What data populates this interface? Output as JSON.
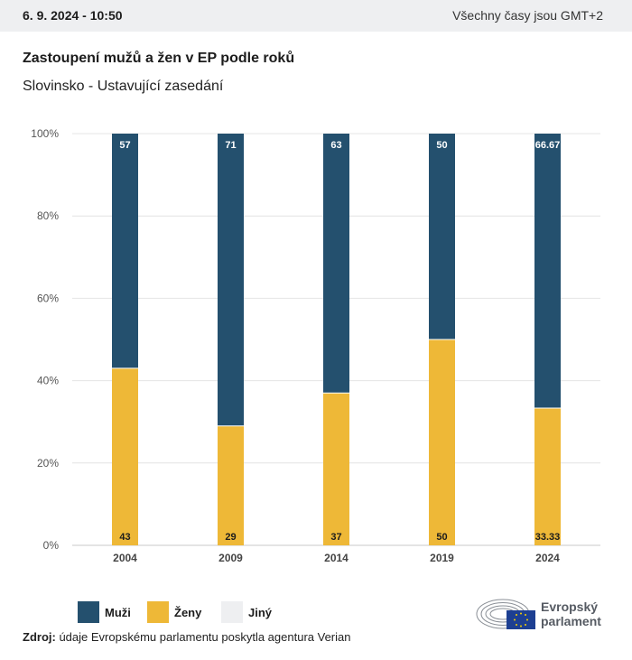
{
  "header": {
    "date": "6. 9. 2024 - 10:50",
    "timezone": "Všechny časy jsou GMT+2"
  },
  "title": "Zastoupení mužů a žen v EP podle roků",
  "subtitle": "Slovinsko - Ustavující zasedání",
  "colors": {
    "men": "#24506e",
    "women": "#eeb837",
    "other": "#eeeff1",
    "grid": "#e4e4e4"
  },
  "chart_data": {
    "type": "bar",
    "stacked": true,
    "categories": [
      "2004",
      "2009",
      "2014",
      "2019",
      "2024"
    ],
    "series": [
      {
        "name": "Ženy",
        "values": [
          43,
          29,
          37,
          50,
          33.33
        ],
        "labels": [
          "43",
          "29",
          "37",
          "50",
          "33.33"
        ]
      },
      {
        "name": "Muži",
        "values": [
          57,
          71,
          63,
          50,
          66.67
        ],
        "labels": [
          "57",
          "71",
          "63",
          "50",
          "66.67"
        ]
      },
      {
        "name": "Jiný",
        "values": [
          0,
          0,
          0,
          0,
          0
        ]
      }
    ],
    "ylim": [
      0,
      100
    ],
    "yticks": [
      "0%",
      "20%",
      "40%",
      "60%",
      "80%",
      "100%"
    ],
    "grid": true
  },
  "legend": [
    {
      "label": "Muži",
      "color": "#24506e"
    },
    {
      "label": "Ženy",
      "color": "#eeb837"
    },
    {
      "label": "Jiný",
      "color": "#eeeff1"
    }
  ],
  "source": {
    "label": "Zdroj:",
    "text": "údaje Evropskému parlamentu poskytla agentura Verian"
  },
  "logo": {
    "line1": "Evropský",
    "line2": "parlament"
  }
}
